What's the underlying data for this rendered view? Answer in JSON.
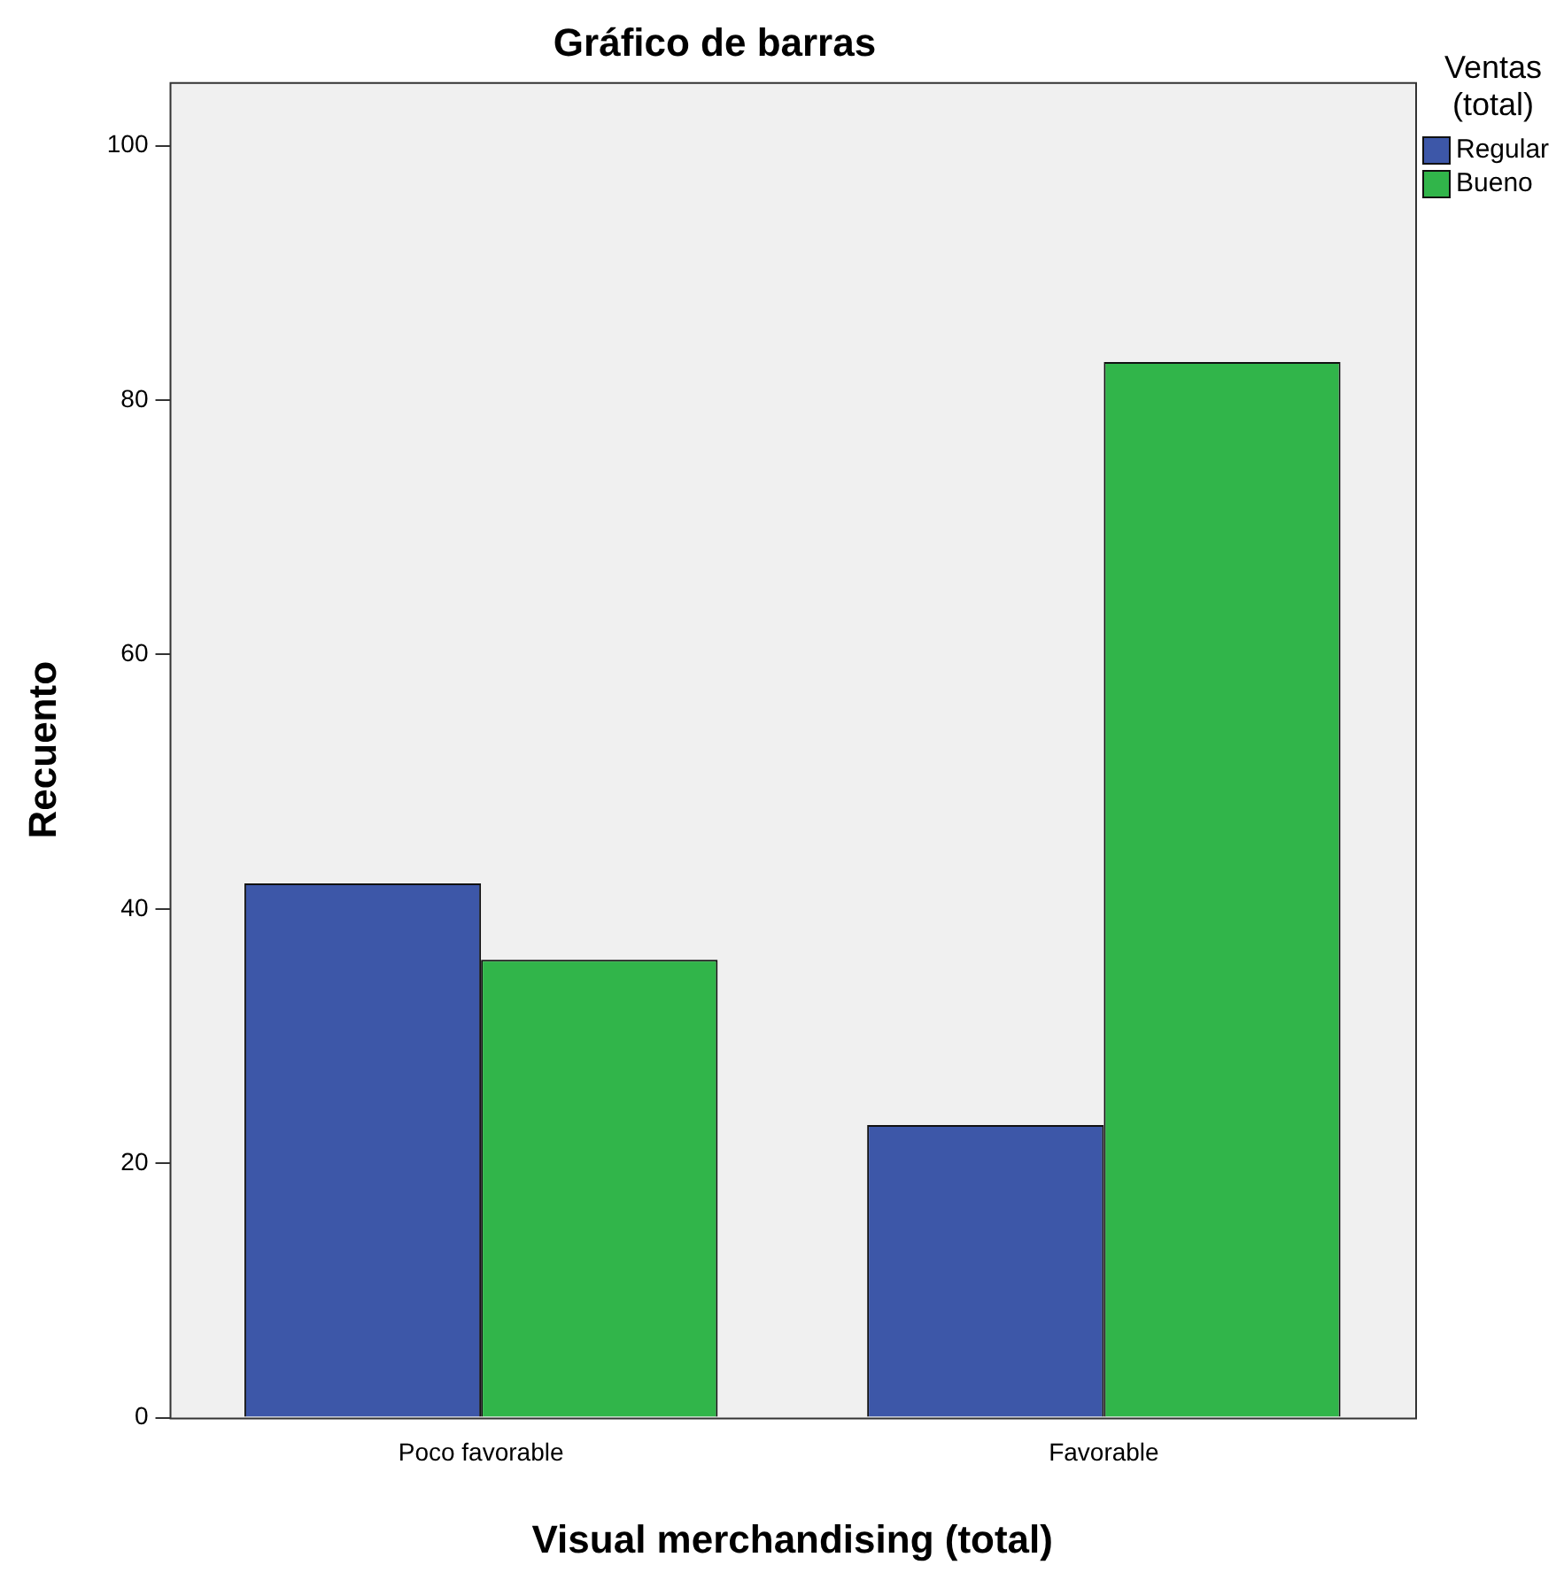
{
  "chart_data": {
    "type": "bar",
    "title": "Gráfico de barras",
    "xlabel": "Visual merchandising (total)",
    "ylabel": "Recuento",
    "legend_title": "Ventas (total)",
    "categories": [
      "Poco favorable",
      "Favorable"
    ],
    "series": [
      {
        "name": "Regular",
        "color": "#3d57a8",
        "values": [
          42,
          23
        ]
      },
      {
        "name": "Bueno",
        "color": "#31b54a",
        "values": [
          36,
          83
        ]
      }
    ],
    "ylim": [
      0,
      105
    ],
    "yticks": [
      0,
      20,
      40,
      60,
      80,
      100
    ],
    "grid": false,
    "legend": "top right"
  }
}
